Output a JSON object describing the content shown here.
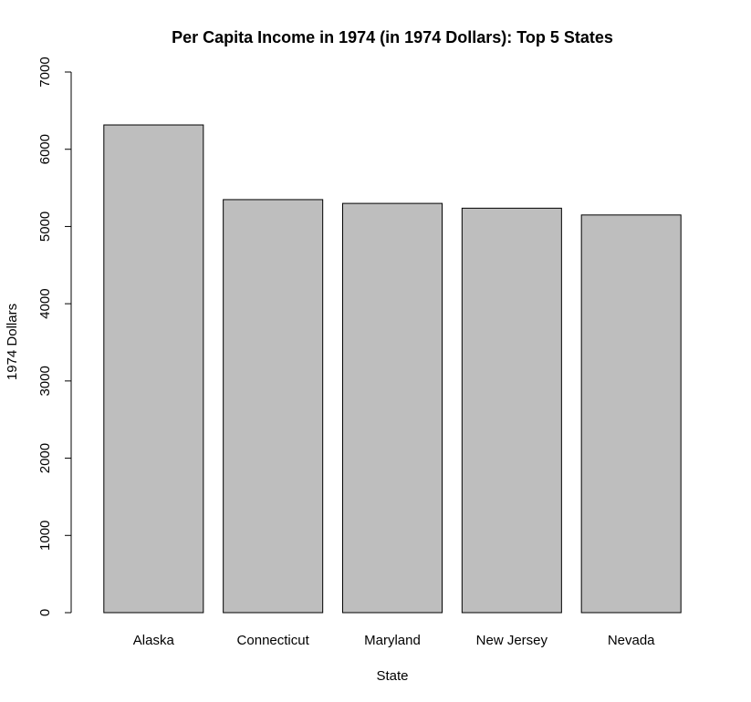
{
  "chart_data": {
    "type": "bar",
    "title": "Per Capita Income in 1974 (in 1974 Dollars): Top 5 States",
    "xlabel": "State",
    "ylabel": "1974 Dollars",
    "categories": [
      "Alaska",
      "Connecticut",
      "Maryland",
      "New Jersey",
      "Nevada"
    ],
    "values": [
      6315,
      5348,
      5299,
      5237,
      5149
    ],
    "ylim": [
      0,
      7000
    ],
    "yticks": [
      0,
      1000,
      2000,
      3000,
      4000,
      5000,
      6000,
      7000
    ],
    "bar_color": "#bebebe",
    "grid": false,
    "legend": "none"
  }
}
